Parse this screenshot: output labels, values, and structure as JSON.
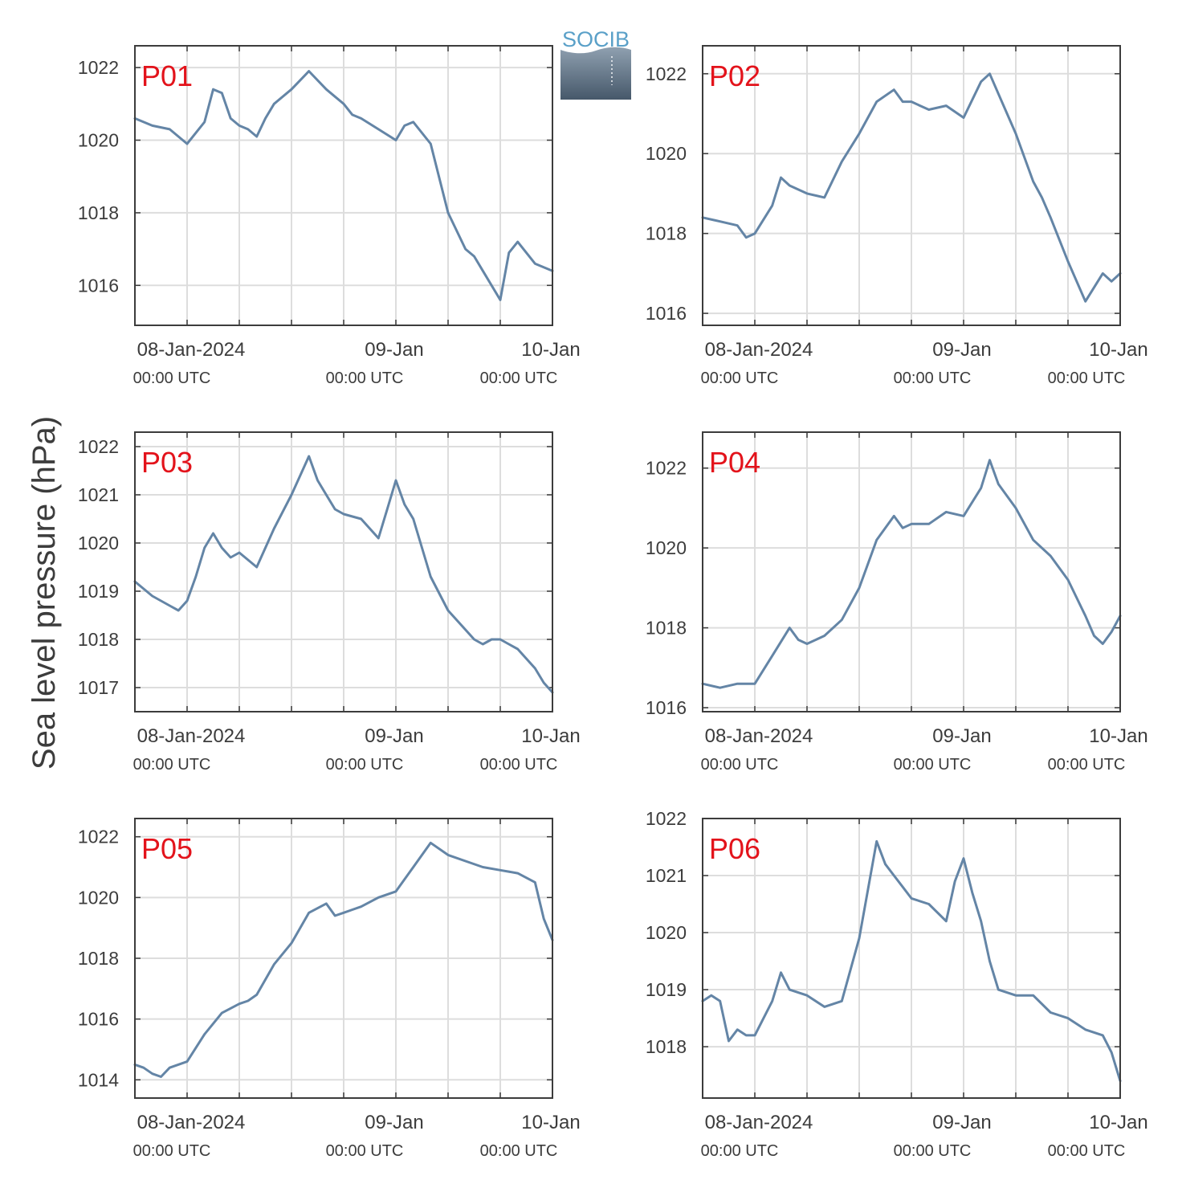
{
  "ylabel": "Sea level pressure (hPa)",
  "logo": {
    "text": "SOCIB",
    "text_color": "#5aa0c8",
    "gradient_top": "#8fa0b0",
    "gradient_bottom": "#46586a"
  },
  "x_ticks": [
    {
      "date": "08-Jan-2024",
      "time": "00:00 UTC"
    },
    {
      "date": "09-Jan",
      "time": "00:00 UTC"
    },
    {
      "date": "10-Jan",
      "time": "00:00 UTC"
    }
  ],
  "colors": {
    "series": "#6485a6",
    "panel_label": "#e3131b",
    "grid": "#dddddd",
    "axis": "#3c3c3c",
    "text": "#3c3c3c"
  },
  "chart_data": [
    {
      "type": "line",
      "panel_label": "P01",
      "xlabel": "",
      "ylabel": "Sea level pressure (hPa)",
      "x_unit": "hours since 08-Jan-2024 00:00 UTC",
      "xlim": [
        -6,
        42
      ],
      "ylim": [
        1014.9,
        1022.6
      ],
      "yticks": [
        1016,
        1018,
        1020,
        1022
      ],
      "grid": true,
      "series": [
        {
          "x": [
            -6,
            -4,
            -2,
            0,
            2,
            3,
            4,
            5,
            6,
            7,
            8,
            9,
            10,
            12,
            14,
            16,
            17,
            18,
            19,
            20,
            22,
            24,
            25,
            26,
            28,
            30,
            32,
            33,
            34,
            36,
            37,
            38,
            40,
            42
          ],
          "y": [
            1020.6,
            1020.4,
            1020.3,
            1019.9,
            1020.5,
            1021.4,
            1021.3,
            1020.6,
            1020.4,
            1020.3,
            1020.1,
            1020.6,
            1021.0,
            1021.4,
            1021.9,
            1021.4,
            1021.2,
            1021.0,
            1020.7,
            1020.6,
            1020.3,
            1020.0,
            1020.4,
            1020.5,
            1019.9,
            1018.0,
            1017.0,
            1016.8,
            1016.4,
            1015.6,
            1016.9,
            1017.2,
            1016.6,
            1016.4
          ]
        }
      ]
    },
    {
      "type": "line",
      "panel_label": "P02",
      "xlabel": "",
      "ylabel": "Sea level pressure (hPa)",
      "x_unit": "hours since 08-Jan-2024 00:00 UTC",
      "xlim": [
        -6,
        42
      ],
      "ylim": [
        1015.7,
        1022.7
      ],
      "yticks": [
        1016,
        1018,
        1020,
        1022
      ],
      "grid": true,
      "series": [
        {
          "x": [
            -6,
            -4,
            -2,
            -1,
            0,
            2,
            3,
            4,
            6,
            8,
            10,
            12,
            14,
            16,
            17,
            18,
            19,
            20,
            22,
            24,
            26,
            27,
            28,
            30,
            32,
            33,
            34,
            36,
            38,
            40,
            41,
            42
          ],
          "y": [
            1018.4,
            1018.3,
            1018.2,
            1017.9,
            1018.0,
            1018.7,
            1019.4,
            1019.2,
            1019.0,
            1018.9,
            1019.8,
            1020.5,
            1021.3,
            1021.6,
            1021.3,
            1021.3,
            1021.2,
            1021.1,
            1021.2,
            1020.9,
            1021.8,
            1022.0,
            1021.5,
            1020.5,
            1019.3,
            1018.9,
            1018.4,
            1017.3,
            1016.3,
            1017.0,
            1016.8,
            1017.0
          ]
        }
      ]
    },
    {
      "type": "line",
      "panel_label": "P03",
      "xlabel": "",
      "ylabel": "Sea level pressure (hPa)",
      "x_unit": "hours since 08-Jan-2024 00:00 UTC",
      "xlim": [
        -6,
        42
      ],
      "ylim": [
        1016.5,
        1022.3
      ],
      "yticks": [
        1017,
        1018,
        1019,
        1020,
        1021,
        1022
      ],
      "grid": true,
      "series": [
        {
          "x": [
            -6,
            -4,
            -2,
            -1,
            0,
            1,
            2,
            3,
            4,
            5,
            6,
            8,
            9,
            10,
            12,
            14,
            15,
            16,
            17,
            18,
            20,
            22,
            23,
            24,
            25,
            26,
            27,
            28,
            30,
            32,
            33,
            34,
            35,
            36,
            37,
            38,
            39,
            40,
            41,
            42
          ],
          "y": [
            1019.2,
            1018.9,
            1018.7,
            1018.6,
            1018.8,
            1019.3,
            1019.9,
            1020.2,
            1019.9,
            1019.7,
            1019.8,
            1019.5,
            1019.9,
            1020.3,
            1021.0,
            1021.8,
            1021.3,
            1021.0,
            1020.7,
            1020.6,
            1020.5,
            1020.1,
            1020.7,
            1021.3,
            1020.8,
            1020.5,
            1019.9,
            1019.3,
            1018.6,
            1018.2,
            1018.0,
            1017.9,
            1018.0,
            1018.0,
            1017.9,
            1017.8,
            1017.6,
            1017.4,
            1017.1,
            1016.9
          ]
        }
      ]
    },
    {
      "type": "line",
      "panel_label": "P04",
      "xlabel": "",
      "ylabel": "Sea level pressure (hPa)",
      "x_unit": "hours since 08-Jan-2024 00:00 UTC",
      "xlim": [
        -6,
        42
      ],
      "ylim": [
        1015.9,
        1022.9
      ],
      "yticks": [
        1016,
        1018,
        1020,
        1022
      ],
      "grid": true,
      "series": [
        {
          "x": [
            -6,
            -4,
            -2,
            0,
            2,
            4,
            5,
            6,
            8,
            10,
            12,
            14,
            16,
            17,
            18,
            20,
            22,
            24,
            26,
            27,
            28,
            30,
            32,
            34,
            36,
            38,
            39,
            40,
            41,
            42
          ],
          "y": [
            1016.6,
            1016.5,
            1016.6,
            1016.6,
            1017.3,
            1018.0,
            1017.7,
            1017.6,
            1017.8,
            1018.2,
            1019.0,
            1020.2,
            1020.8,
            1020.5,
            1020.6,
            1020.6,
            1020.9,
            1020.8,
            1021.5,
            1022.2,
            1021.6,
            1021.0,
            1020.2,
            1019.8,
            1019.2,
            1018.3,
            1017.8,
            1017.6,
            1017.9,
            1018.3
          ]
        }
      ]
    },
    {
      "type": "line",
      "panel_label": "P05",
      "xlabel": "",
      "ylabel": "Sea level pressure (hPa)",
      "x_unit": "hours since 08-Jan-2024 00:00 UTC",
      "xlim": [
        -6,
        42
      ],
      "ylim": [
        1013.4,
        1022.6
      ],
      "yticks": [
        1014,
        1016,
        1018,
        1020,
        1022
      ],
      "grid": true,
      "series": [
        {
          "x": [
            -6,
            -5,
            -4,
            -3,
            -2,
            0,
            2,
            4,
            6,
            7,
            8,
            10,
            12,
            14,
            16,
            17,
            18,
            19,
            20,
            22,
            24,
            26,
            28,
            30,
            32,
            34,
            36,
            38,
            40,
            41,
            42
          ],
          "y": [
            1014.5,
            1014.4,
            1014.2,
            1014.1,
            1014.4,
            1014.6,
            1015.5,
            1016.2,
            1016.5,
            1016.6,
            1016.8,
            1017.8,
            1018.5,
            1019.5,
            1019.8,
            1019.4,
            1019.5,
            1019.6,
            1019.7,
            1020.0,
            1020.2,
            1021.0,
            1021.8,
            1021.4,
            1021.2,
            1021.0,
            1020.9,
            1020.8,
            1020.5,
            1019.3,
            1018.6
          ]
        }
      ]
    },
    {
      "type": "line",
      "panel_label": "P06",
      "xlabel": "",
      "ylabel": "Sea level pressure (hPa)",
      "x_unit": "hours since 08-Jan-2024 00:00 UTC",
      "xlim": [
        -6,
        42
      ],
      "ylim": [
        1017.1,
        1022.0
      ],
      "yticks": [
        1018,
        1019,
        1020,
        1021,
        1022
      ],
      "grid": true,
      "series": [
        {
          "x": [
            -6,
            -5,
            -4,
            -3,
            -2,
            -1,
            0,
            2,
            3,
            4,
            6,
            8,
            10,
            12,
            14,
            15,
            16,
            17,
            18,
            20,
            22,
            23,
            24,
            25,
            26,
            27,
            28,
            30,
            32,
            34,
            36,
            38,
            40,
            41,
            42
          ],
          "y": [
            1018.8,
            1018.9,
            1018.8,
            1018.1,
            1018.3,
            1018.2,
            1018.2,
            1018.8,
            1019.3,
            1019.0,
            1018.9,
            1018.7,
            1018.8,
            1019.9,
            1021.6,
            1021.2,
            1021.0,
            1020.8,
            1020.6,
            1020.5,
            1020.2,
            1020.9,
            1021.3,
            1020.7,
            1020.2,
            1019.5,
            1019.0,
            1018.9,
            1018.9,
            1018.6,
            1018.5,
            1018.3,
            1018.2,
            1017.9,
            1017.4
          ]
        }
      ]
    }
  ]
}
